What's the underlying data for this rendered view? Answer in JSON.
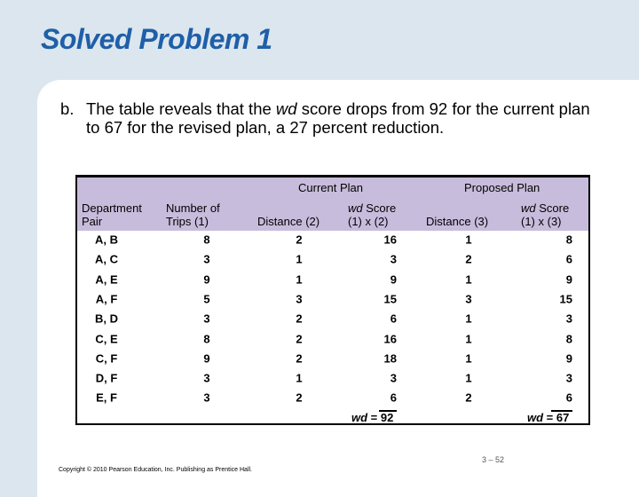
{
  "title": "Solved Problem 1",
  "bullet": {
    "label": "b.",
    "text_before": "The table reveals that the ",
    "em": "wd",
    "text_after": " score drops from 92 for the current plan to 67 for the revised plan, a 27 percent reduction."
  },
  "table": {
    "group_headers": {
      "current": "Current Plan",
      "proposed": "Proposed Plan"
    },
    "headers": {
      "pair": [
        "Department",
        "Pair"
      ],
      "trips": [
        "Number of",
        "Trips (1)"
      ],
      "dist2": "Distance (2)",
      "wd2": [
        "wd",
        " Score",
        "(1) x (2)"
      ],
      "dist3": "Distance (3)",
      "wd3": [
        "wd",
        " Score",
        "(1) x (3)"
      ]
    },
    "rows": [
      [
        "A, B",
        "8",
        "2",
        "16",
        "1",
        "8"
      ],
      [
        "A, C",
        "3",
        "1",
        "3",
        "2",
        "6"
      ],
      [
        "A, E",
        "9",
        "1",
        "9",
        "1",
        "9"
      ],
      [
        "A, F",
        "5",
        "3",
        "15",
        "3",
        "15"
      ],
      [
        "B, D",
        "3",
        "2",
        "6",
        "1",
        "3"
      ],
      [
        "C, E",
        "8",
        "2",
        "16",
        "1",
        "8"
      ],
      [
        "C, F",
        "9",
        "2",
        "18",
        "1",
        "9"
      ],
      [
        "D, F",
        "3",
        "1",
        "3",
        "1",
        "3"
      ],
      [
        "E, F",
        "3",
        "2",
        "6",
        "2",
        "6"
      ]
    ],
    "totals": {
      "label": "wd",
      "current": " = 92",
      "proposed": " = 67"
    }
  },
  "page_number": "3 – 52",
  "copyright": "Copyright © 2010 Pearson Education, Inc. Publishing as Prentice Hall."
}
